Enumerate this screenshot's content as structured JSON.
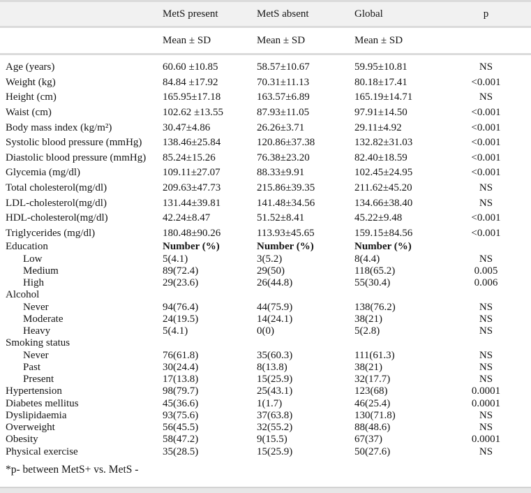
{
  "colors": {
    "header_band": "#f1f1f1",
    "rule": "#dbdbdb",
    "text": "#141414",
    "bottom_bar": "#e7e7e7",
    "page_bg": "#ffffff"
  },
  "table": {
    "column_headers": {
      "mets_present": "MetS present",
      "mets_absent": "MetS absent",
      "global": "Global",
      "p": "p"
    },
    "subheaders": {
      "mets_present": "Mean ± SD",
      "mets_absent": "Mean ± SD",
      "global": "Mean ± SD"
    },
    "rows": [
      {
        "label": "Age (years)",
        "indent": false,
        "section": "wide",
        "values": [
          "60.60 ±10.85",
          "58.57±10.67",
          "59.95±10.81"
        ],
        "p": "NS",
        "bold_values": false
      },
      {
        "label": "Weight (kg)",
        "indent": false,
        "section": "wide",
        "values": [
          "84.84 ±17.92",
          "70.31±11.13",
          "80.18±17.41"
        ],
        "p": "<0.001",
        "bold_values": false
      },
      {
        "label": "Height (cm)",
        "indent": false,
        "section": "wide",
        "values": [
          "165.95±17.18",
          "163.57±6.89",
          "165.19±14.71"
        ],
        "p": "NS",
        "bold_values": false
      },
      {
        "label": "Waist (cm)",
        "indent": false,
        "section": "wide",
        "values": [
          "102.62 ±13.55",
          "87.93±11.05",
          "97.91±14.50"
        ],
        "p": "<0.001",
        "bold_values": false
      },
      {
        "label": "Body mass index (kg/m²)",
        "indent": false,
        "section": "wide",
        "values": [
          "30.47±4.86",
          "26.26±3.71",
          "29.11±4.92"
        ],
        "p": "<0.001",
        "bold_values": false
      },
      {
        "label": "Systolic blood pressure (mmHg)",
        "indent": false,
        "section": "wide",
        "values": [
          "138.46±25.84",
          "120.86±37.38",
          "132.82±31.03"
        ],
        "p": "<0.001",
        "bold_values": false
      },
      {
        "label": "Diastolic blood pressure (mmHg)",
        "indent": false,
        "section": "wide",
        "values": [
          "85.24±15.26",
          "76.38±23.20",
          "82.40±18.59"
        ],
        "p": "<0.001",
        "bold_values": false
      },
      {
        "label": "Glycemia (mg/dl)",
        "indent": false,
        "section": "wide",
        "values": [
          "109.11±27.07",
          "88.33±9.91",
          "102.45±24.95"
        ],
        "p": "<0.001",
        "bold_values": false
      },
      {
        "label": "Total cholesterol(mg/dl)",
        "indent": false,
        "section": "wide",
        "values": [
          "209.63±47.73",
          "215.86±39.35",
          "211.62±45.20"
        ],
        "p": "NS",
        "bold_values": false
      },
      {
        "label": "LDL-cholesterol(mg/dl)",
        "indent": false,
        "section": "wide",
        "values": [
          "131.44±39.81",
          "141.48±34.56",
          "134.66±38.40"
        ],
        "p": "NS",
        "bold_values": false
      },
      {
        "label": "HDL-cholesterol(mg/dl)",
        "indent": false,
        "section": "wide",
        "values": [
          "42.24±8.47",
          "51.52±8.41",
          "45.22±9.48"
        ],
        "p": "<0.001",
        "bold_values": false
      },
      {
        "label": "Triglycerides (mg/dl)",
        "indent": false,
        "section": "wide",
        "values": [
          "180.48±90.26",
          "113.93±45.65",
          "159.15±84.56"
        ],
        "p": "<0.001",
        "bold_values": false
      },
      {
        "label": "Education",
        "indent": false,
        "section": "compact",
        "values": [
          "Number (%)",
          "Number (%)",
          "Number (%)"
        ],
        "p": "",
        "bold_values": true
      },
      {
        "label": "Low",
        "indent": true,
        "section": "compact",
        "values": [
          "5(4.1)",
          "3(5.2)",
          "8(4.4)"
        ],
        "p": "NS",
        "bold_values": false
      },
      {
        "label": "Medium",
        "indent": true,
        "section": "compact",
        "values": [
          "89(72.4)",
          "29(50)",
          "118(65.2)"
        ],
        "p": "0.005",
        "bold_values": false
      },
      {
        "label": "High",
        "indent": true,
        "section": "compact",
        "values": [
          "29(23.6)",
          "26(44.8)",
          "55(30.4)"
        ],
        "p": "0.006",
        "bold_values": false
      },
      {
        "label": "Alcohol",
        "indent": false,
        "section": "compact",
        "values": [
          "",
          "",
          ""
        ],
        "p": "",
        "bold_values": false
      },
      {
        "label": "Never",
        "indent": true,
        "section": "compact",
        "values": [
          "94(76.4)",
          "44(75.9)",
          "138(76.2)"
        ],
        "p": "NS",
        "bold_values": false
      },
      {
        "label": "Moderate",
        "indent": true,
        "section": "compact",
        "values": [
          "24(19.5)",
          "14(24.1)",
          "38(21)"
        ],
        "p": "NS",
        "bold_values": false
      },
      {
        "label": "Heavy",
        "indent": true,
        "section": "compact",
        "values": [
          "5(4.1)",
          "0(0)",
          "5(2.8)"
        ],
        "p": "NS",
        "bold_values": false
      },
      {
        "label": "Smoking status",
        "indent": false,
        "section": "compact",
        "values": [
          "",
          "",
          ""
        ],
        "p": "",
        "bold_values": false
      },
      {
        "label": "Never",
        "indent": true,
        "section": "compact",
        "values": [
          "76(61.8)",
          "35(60.3)",
          "111(61.3)"
        ],
        "p": "NS",
        "bold_values": false
      },
      {
        "label": "Past",
        "indent": true,
        "section": "compact",
        "values": [
          "30(24.4)",
          "8(13.8)",
          "38(21)"
        ],
        "p": "NS",
        "bold_values": false
      },
      {
        "label": "Present",
        "indent": true,
        "section": "compact",
        "values": [
          "17(13.8)",
          "15(25.9)",
          "32(17.7)"
        ],
        "p": "NS",
        "bold_values": false
      },
      {
        "label": "Hypertension",
        "indent": false,
        "section": "compact",
        "values": [
          "98(79.7)",
          "25(43.1)",
          "123(68)"
        ],
        "p": "0.0001",
        "bold_values": false
      },
      {
        "label": "Diabetes mellitus",
        "indent": false,
        "section": "compact",
        "values": [
          "45(36.6)",
          "1(1.7)",
          "46(25.4)"
        ],
        "p": "0.0001",
        "bold_values": false
      },
      {
        "label": "Dyslipidaemia",
        "indent": false,
        "section": "compact",
        "values": [
          "93(75.6)",
          "37(63.8)",
          "130(71.8)"
        ],
        "p": "NS",
        "bold_values": false
      },
      {
        "label": "Overweight",
        "indent": false,
        "section": "compact",
        "values": [
          "56(45.5)",
          "32(55.2)",
          "88(48.6)"
        ],
        "p": "NS",
        "bold_values": false
      },
      {
        "label": "Obesity",
        "indent": false,
        "section": "compact",
        "values": [
          "58(47.2)",
          "9(15.5)",
          "67(37)"
        ],
        "p": "0.0001",
        "bold_values": false
      },
      {
        "label": "Physical exercise",
        "indent": false,
        "section": "compact",
        "values": [
          "35(28.5)",
          "15(25.9)",
          "50(27.6)"
        ],
        "p": "NS",
        "bold_values": false
      }
    ],
    "footnote": "*p- between MetS+ vs. MetS -"
  }
}
